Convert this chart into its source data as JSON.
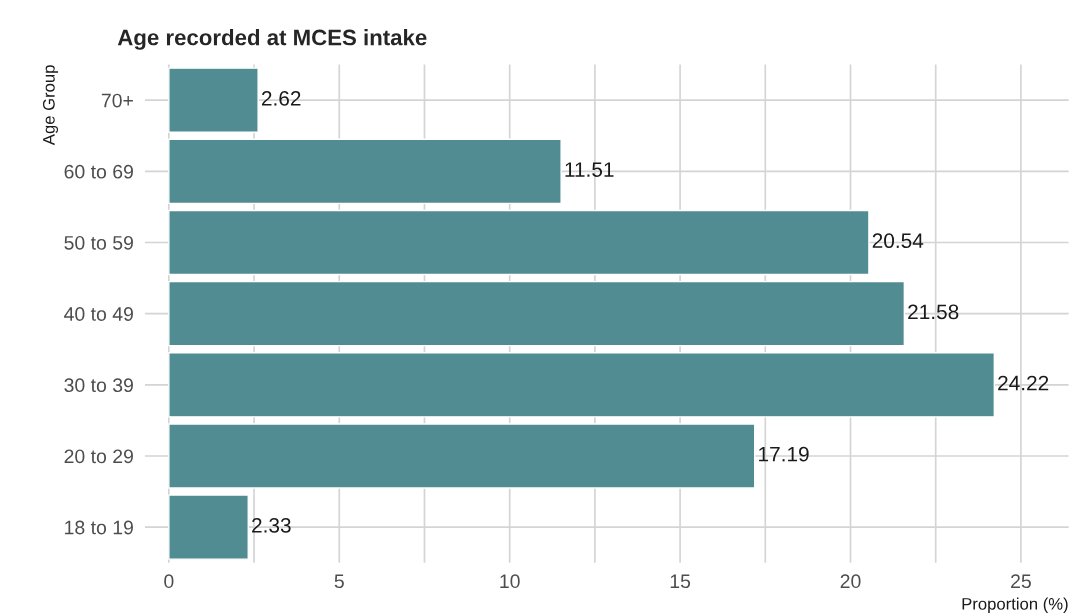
{
  "chart_data": {
    "type": "bar",
    "orientation": "horizontal",
    "title": "Age recorded at MCES intake",
    "xlabel": "Proportion (%)",
    "ylabel": "Age Group",
    "categories": [
      "70+",
      "60 to 69",
      "50 to 59",
      "40 to 49",
      "30 to 39",
      "20 to 29",
      "18 to 19"
    ],
    "values": [
      2.62,
      11.51,
      20.54,
      21.58,
      24.22,
      17.19,
      2.33
    ],
    "color": "#528c93",
    "xlim": [
      -0.7,
      26.4
    ],
    "xticks": [
      0,
      {
        "value": 2.5,
        "label": null
      },
      5,
      {
        "value": 7.5,
        "label": null
      },
      10,
      {
        "value": 12.5,
        "label": null
      },
      15,
      {
        "value": 17.5,
        "label": null
      },
      20,
      {
        "value": 22.5,
        "label": null
      },
      25
    ],
    "grid": true,
    "data_labels": true
  }
}
